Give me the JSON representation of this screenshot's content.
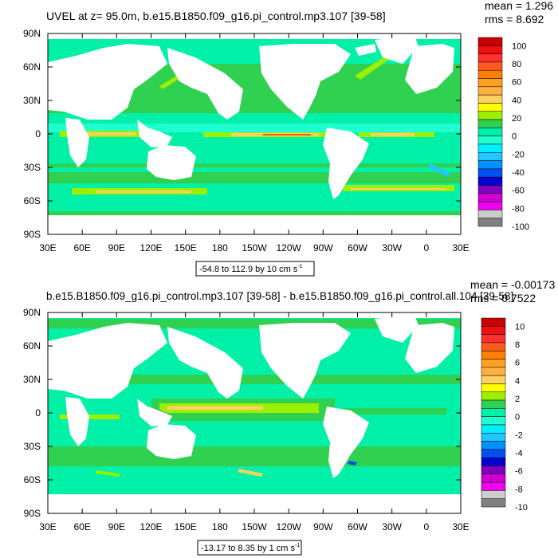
{
  "chart_data": [
    {
      "type": "heatmap",
      "title": "UVEL at z=  95.0m, b.e15.B1850.f09_g16.pi_control.mp3.107 [39-58]",
      "stats": {
        "mean": "mean = 1.296",
        "rms": "rms = 8.692"
      },
      "range_label": "-54.8 to 112.9 by 10 cm s",
      "range_unit_exp": "-1",
      "x_ticks": [
        "30E",
        "60E",
        "90E",
        "120E",
        "150E",
        "180",
        "150W",
        "120W",
        "90W",
        "60W",
        "30W",
        "0",
        "30E"
      ],
      "y_ticks": [
        "90N",
        "60N",
        "30N",
        "0",
        "30S",
        "60S",
        "90S"
      ],
      "colorbar_labels": [
        "100",
        "80",
        "60",
        "40",
        "20",
        "0",
        "-20",
        "-40",
        "-60",
        "-80",
        "-100"
      ],
      "levels": [
        100,
        90,
        80,
        70,
        60,
        50,
        40,
        30,
        20,
        10,
        0,
        -10,
        -20,
        -30,
        -40,
        -50,
        -60,
        -70,
        -80,
        -90,
        -100
      ],
      "colors": [
        "#c80000",
        "#ee1010",
        "#ff3030",
        "#ff5a1e",
        "#ff8000",
        "#ffa020",
        "#ffb040",
        "#ffd060",
        "#ffff00",
        "#9af000",
        "#30d050",
        "#00f0a8",
        "#20ffd0",
        "#00f0ff",
        "#20c8ff",
        "#0090ff",
        "#0050f0",
        "#0000d0",
        "#8000c0",
        "#d000d0",
        "#f000f0",
        "#cccccc",
        "#808080"
      ],
      "value_range": [
        -54.8,
        112.9
      ],
      "grid": false
    },
    {
      "type": "heatmap",
      "title": "b.e15.B1850.f09_g16.pi_control.mp3.107 [39-58] - b.e15.B1850.f09_g16.pi_control.all.104 [39-58]",
      "stats": {
        "mean": "mean = -0.00173",
        "rms": "rms = 0.7522"
      },
      "range_label": "-13.17 to 8.35 by 1 cm s",
      "range_unit_exp": "-1",
      "x_ticks": [
        "30E",
        "60E",
        "90E",
        "120E",
        "150E",
        "180",
        "150W",
        "120W",
        "90W",
        "60W",
        "30W",
        "0",
        "30E"
      ],
      "y_ticks": [
        "90N",
        "60N",
        "30N",
        "0",
        "30S",
        "60S",
        "90S"
      ],
      "colorbar_labels": [
        "10",
        "8",
        "6",
        "4",
        "2",
        "0",
        "-2",
        "-4",
        "-6",
        "-8",
        "-10"
      ],
      "levels": [
        10,
        9,
        8,
        7,
        6,
        5,
        4,
        3,
        2,
        1,
        0,
        -1,
        -2,
        -3,
        -4,
        -5,
        -6,
        -7,
        -8,
        -9,
        -10
      ],
      "colors": [
        "#c80000",
        "#ee1010",
        "#ff3030",
        "#ff5a1e",
        "#ff8000",
        "#ffa020",
        "#ffb040",
        "#ffd060",
        "#ffff00",
        "#9af000",
        "#30d050",
        "#00f0a8",
        "#20ffd0",
        "#00f0ff",
        "#20c8ff",
        "#0090ff",
        "#0050f0",
        "#0000d0",
        "#8000c0",
        "#d000d0",
        "#f000f0",
        "#cccccc",
        "#808080"
      ],
      "value_range": [
        -13.17,
        8.35
      ],
      "grid": false
    }
  ]
}
